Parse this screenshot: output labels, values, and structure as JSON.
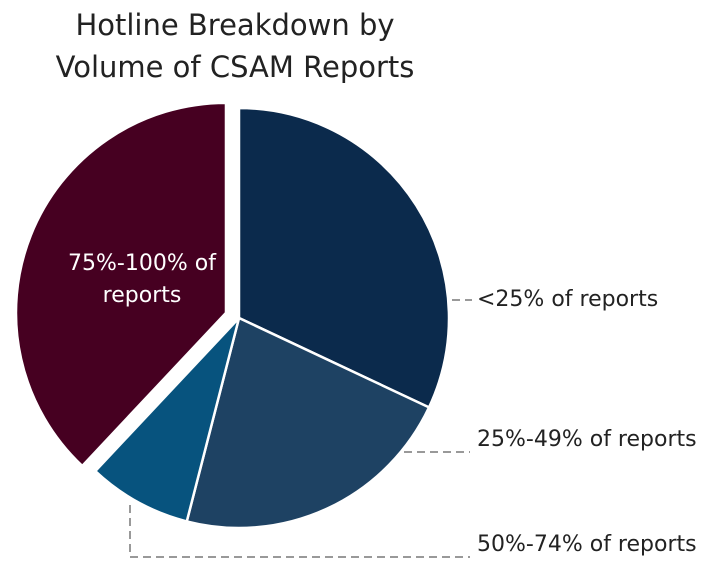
{
  "chart_data": {
    "type": "pie",
    "title": "Hotline Breakdown by Volume of CSAM Reports",
    "categories": [
      "<25% of reports",
      "25%-49% of reports",
      "50%-74% of reports",
      "75%-100% of reports"
    ],
    "values": [
      32,
      22,
      8,
      38
    ],
    "colors": [
      "#0b2a4c",
      "#1e4263",
      "#07537e",
      "#460021"
    ],
    "explode": [
      false,
      false,
      false,
      true
    ]
  }
}
